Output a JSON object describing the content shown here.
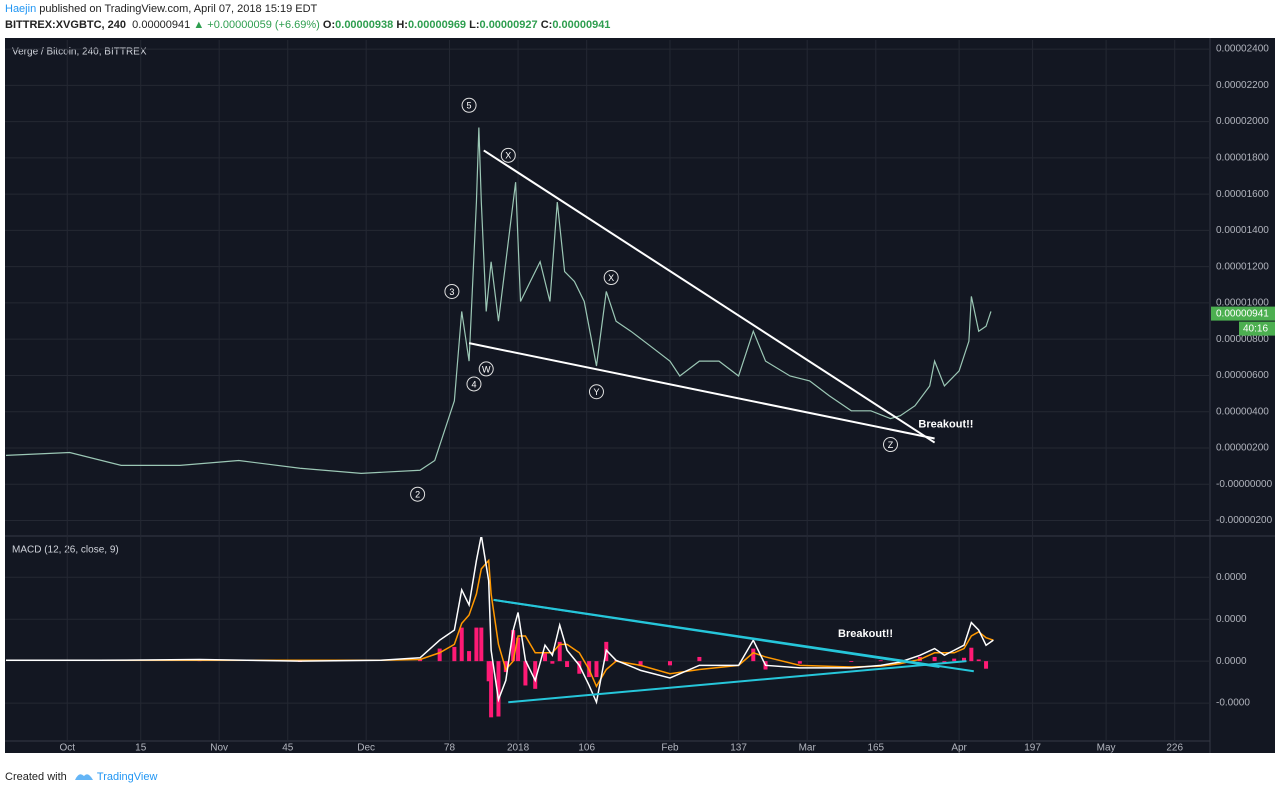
{
  "header": {
    "author": "Haejin",
    "published": "published on TradingView.com, April 07, 2018 15:19 EDT",
    "symbol": "BITTREX:XVGBTC, 240",
    "last": "0.00000941",
    "arrow": "▲",
    "change": "+0.00000059 (+6.69%)",
    "ohlc": [
      {
        "label": "O:",
        "value": "0.00000938"
      },
      {
        "label": "H:",
        "value": "0.00000969"
      },
      {
        "label": "L:",
        "value": "0.00000927"
      },
      {
        "label": "C:",
        "value": "0.00000941"
      }
    ]
  },
  "footer": {
    "text": "Created with",
    "brand": "TradingView"
  },
  "chart_data": [
    {
      "type": "line",
      "title": "Verge / Bitcoin, 240, BITTREX",
      "color": "#9bc7b5",
      "grid": true,
      "xlim": [
        -12.7,
        233.2
      ],
      "ylim": [
        -2.8e-06,
        2.45e-05
      ],
      "yticks": [
        {
          "value": 2.4e-05,
          "label": "0.00002400"
        },
        {
          "value": 2.2e-05,
          "label": "0.00002200"
        },
        {
          "value": 2e-05,
          "label": "0.00002000"
        },
        {
          "value": 1.8e-05,
          "label": "0.00001800"
        },
        {
          "value": 1.6e-05,
          "label": "0.00001600"
        },
        {
          "value": 1.4e-05,
          "label": "0.00001400"
        },
        {
          "value": 1.2e-05,
          "label": "0.00001200"
        },
        {
          "value": 1e-05,
          "label": "0.00001000"
        },
        {
          "value": 8e-06,
          "label": "0.00000800"
        },
        {
          "value": 6e-06,
          "label": "0.00000600"
        },
        {
          "value": 4e-06,
          "label": "0.00000400"
        },
        {
          "value": 2e-06,
          "label": "0.00000200"
        },
        {
          "value": 0,
          "label": "-0.00000000"
        },
        {
          "value": -2e-06,
          "label": "-0.00000200"
        }
      ],
      "x": [
        -12.5,
        0.5,
        11,
        23,
        35,
        47.5,
        60,
        72,
        75,
        77,
        79,
        80.5,
        82,
        83.5,
        84,
        84.5,
        85.5,
        86.5,
        88,
        89.5,
        91.5,
        92.5,
        94.5,
        96.5,
        98.5,
        100,
        101.5,
        103.5,
        105.5,
        108,
        110,
        112,
        115,
        119,
        123,
        125,
        129,
        133,
        137,
        140,
        142.5,
        147.5,
        151.5,
        155.5,
        160,
        164,
        168,
        170,
        173,
        176,
        177,
        179,
        182,
        184,
        184.5,
        186,
        187.5,
        188.5
      ],
      "values": [
        1.59e-06,
        1.75e-06,
        1.04e-06,
        1.04e-06,
        1.31e-06,
        8.8e-07,
        6e-07,
        7.7e-07,
        1.31e-06,
        2.96e-06,
        4.6e-06,
        9.53e-06,
        6.79e-06,
        1.556e-05,
        1.967e-05,
        1.556e-05,
        9.53e-06,
        1.227e-05,
        8.99e-06,
        1.227e-05,
        1.666e-05,
        1.008e-05,
        1.118e-05,
        1.227e-05,
        1.008e-05,
        1.556e-05,
        1.173e-05,
        1.118e-05,
        1.008e-05,
        6.52e-06,
        1.063e-05,
        8.99e-06,
        8.44e-06,
        7.62e-06,
        6.79e-06,
        5.97e-06,
        6.79e-06,
        6.79e-06,
        5.97e-06,
        8.44e-06,
        6.79e-06,
        5.97e-06,
        5.7e-06,
        4.88e-06,
        4.05e-06,
        4.05e-06,
        3.62e-06,
        3.78e-06,
        4.33e-06,
        5.42e-06,
        6.79e-06,
        5.42e-06,
        6.25e-06,
        7.89e-06,
        1.036e-05,
        8.44e-06,
        8.71e-06,
        9.53e-06
      ],
      "last_price": {
        "value": 9.41e-06,
        "label": "0.00000941",
        "color": "#4caf50"
      },
      "countdown": "40:16",
      "trendlines": [
        {
          "x": [
            85,
            177
          ],
          "y": [
            1.841e-05,
            2.3e-06
          ],
          "color": "#ffffff"
        },
        {
          "x": [
            82,
            177
          ],
          "y": [
            7.78e-06,
            2.52e-06
          ],
          "color": "#ffffff"
        }
      ],
      "annotations": [
        {
          "text": "5",
          "x": 82,
          "y": 2.09e-05,
          "circled": true
        },
        {
          "text": "3",
          "x": 78.5,
          "y": 1.063e-05,
          "circled": true
        },
        {
          "text": "4",
          "x": 83,
          "y": 5.53e-06,
          "circled": true
        },
        {
          "text": "2",
          "x": 71.5,
          "y": -5.5e-07,
          "circled": true
        },
        {
          "text": "W",
          "x": 85.5,
          "y": 6.36e-06,
          "circled": true
        },
        {
          "text": "X",
          "x": 90,
          "y": 1.814e-05,
          "circled": true
        },
        {
          "text": "X",
          "x": 111,
          "y": 1.14e-05,
          "circled": true
        },
        {
          "text": "Y",
          "x": 108,
          "y": 5.1e-06,
          "circled": true
        },
        {
          "text": "Z",
          "x": 168,
          "y": 2.19e-06,
          "circled": true
        },
        {
          "text": "Breakout!!",
          "x": 173.7,
          "y": 3.29e-06,
          "circled": false
        }
      ]
    },
    {
      "type": "macd",
      "title": "MACD (12, 26, close, 9)",
      "grid": true,
      "xlim": [
        -12.7,
        233.2
      ],
      "ylim": [
        -9.4e-07,
        1.48e-06
      ],
      "yticks": [
        {
          "value": 1e-06,
          "label": "0.0000"
        },
        {
          "value": 5e-07,
          "label": "0.0000"
        },
        {
          "value": 0,
          "label": "0.0000"
        },
        {
          "value": -5e-07,
          "label": "-0.0000"
        }
      ],
      "xticks": [
        {
          "value": 0,
          "label": "Oct"
        },
        15,
        {
          "value": 31,
          "label": "Nov"
        },
        45,
        {
          "value": 61,
          "label": "Dec"
        },
        78,
        {
          "value": 92,
          "label": "2018"
        },
        106,
        {
          "value": 123,
          "label": "Feb"
        },
        137,
        {
          "value": 151,
          "label": "Mar"
        },
        165,
        {
          "value": 182,
          "label": "Apr"
        },
        197,
        {
          "value": 212,
          "label": "May"
        },
        226
      ],
      "x": [
        -12.5,
        6.5,
        27,
        47.5,
        64,
        72,
        76,
        79,
        80.5,
        82,
        83.5,
        84.5,
        86,
        86.5,
        88,
        89.5,
        91,
        92,
        93.5,
        95.5,
        97.5,
        99,
        100.5,
        102,
        104.5,
        106.5,
        108,
        110,
        112,
        117,
        123,
        129,
        137,
        140,
        142.5,
        149.5,
        160,
        166,
        170,
        174,
        177,
        179,
        181,
        183,
        184.5,
        186,
        187.5,
        189
      ],
      "series": [
        {
          "style": "histogram",
          "color": "#ff1a75",
          "values": [
            0,
            0,
            1e-08,
            -1e-08,
            0,
            2e-08,
            1.5e-07,
            1.7e-07,
            4e-07,
            1.2e-07,
            4e-07,
            4e-07,
            -2.4e-07,
            -6.7e-07,
            -6.6e-07,
            -1.3e-07,
            3.7e-07,
            2.8e-07,
            -2.9e-07,
            -3.3e-07,
            9e-08,
            -3e-08,
            2.3e-07,
            -7e-08,
            -1.5e-07,
            -1.9e-07,
            -1.9e-07,
            2.3e-07,
            1e-08,
            -6e-08,
            -5e-08,
            5e-08,
            0,
            1.5e-07,
            -1e-07,
            -3e-08,
            -1e-08,
            1e-08,
            2e-08,
            5e-08,
            5e-08,
            -3e-08,
            3e-08,
            4e-08,
            1.6e-07,
            2e-08,
            -9e-08,
            0
          ]
        },
        {
          "style": "line",
          "color": "#ff9800",
          "values": [
            1e-08,
            1e-08,
            1e-08,
            1e-08,
            1e-08,
            2e-08,
            1e-07,
            2e-07,
            4.5e-07,
            5.5e-07,
            8e-07,
            1.1e-06,
            1.2e-06,
            8e-07,
            2e-07,
            -1e-07,
            0,
            3e-07,
            3e-07,
            1e-07,
            1e-07,
            1e-07,
            2e-07,
            2e-07,
            1e-07,
            -1e-07,
            -3e-07,
            -1e-07,
            0,
            -5e-08,
            -1.5e-07,
            -1e-07,
            -5e-08,
            1e-07,
            5e-08,
            -5e-08,
            -7e-08,
            -6e-08,
            -3e-08,
            2e-08,
            1e-07,
            1e-07,
            1e-07,
            1.5e-07,
            3e-07,
            3.5e-07,
            2.8e-07,
            2.5e-07
          ]
        },
        {
          "style": "line",
          "color": "#ffffff",
          "values": [
            1e-08,
            1e-08,
            2e-08,
            0,
            1e-08,
            4e-08,
            2.5e-07,
            3.7e-07,
            8.5e-07,
            6.7e-07,
            1.2e-06,
            1.5e-06,
            9.6e-07,
            1.3e-07,
            -4.6e-07,
            -2.3e-07,
            3.7e-07,
            5.8e-07,
            1e-08,
            -2.3e-07,
            1.9e-07,
            7e-08,
            4.3e-07,
            1.3e-07,
            -5e-08,
            -2.9e-07,
            -4.9e-07,
            1.3e-07,
            1e-08,
            -1.1e-07,
            -2e-07,
            -5e-08,
            -5e-08,
            2.5e-07,
            -5e-08,
            -8e-08,
            -8e-08,
            -5e-08,
            -1e-08,
            7e-08,
            1.5e-07,
            7e-08,
            1.3e-07,
            1.9e-07,
            4.6e-07,
            3.7e-07,
            1.9e-07,
            2.5e-07
          ]
        }
      ],
      "trendlines": [
        {
          "x": [
            87,
            178
          ],
          "y": [
            7.3e-07,
            -7e-08
          ],
          "color": "#26c6da"
        },
        {
          "x": [
            90,
            183.5
          ],
          "y": [
            -4.9e-07,
            0
          ],
          "color": "#26c6da"
        },
        {
          "x": [
            87,
            185
          ],
          "y": [
            7.3e-07,
            -1.2e-07
          ],
          "color": "#26c6da"
        }
      ],
      "annotations": [
        {
          "text": "Breakout!!",
          "x": 157.3,
          "y": 3.2e-07,
          "circled": false
        }
      ]
    }
  ]
}
